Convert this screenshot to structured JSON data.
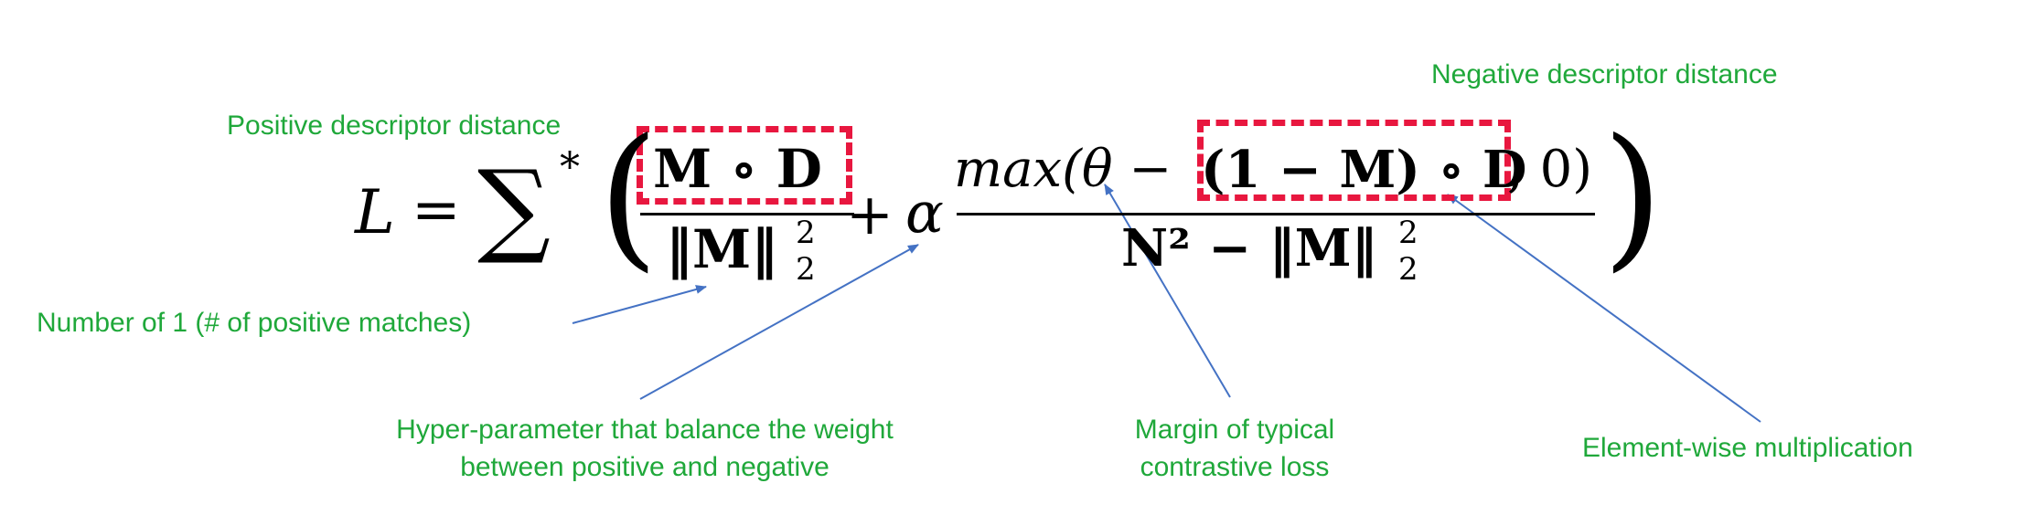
{
  "annotations": {
    "positive_distance": "Positive descriptor distance",
    "negative_distance": "Negative descriptor distance",
    "num_positive": "Number of 1 (# of positive matches)",
    "hyperparam_line1": "Hyper-parameter that balance the weight",
    "hyperparam_line2": "between positive and negative",
    "margin_line1": "Margin of typical",
    "margin_line2": "contrastive loss",
    "elementwise": "Element-wise multiplication"
  },
  "formula": {
    "lhs": "L",
    "equals": "=",
    "sum": "∑",
    "star": "*",
    "open_paren": "(",
    "close_paren": ")",
    "first_numerator": "M ∘ D",
    "first_denominator_norm": "‖M‖",
    "plus": "+",
    "alpha": "α",
    "second_numerator_func": "max(θ −",
    "second_numerator_term": "(1 − M) ∘ D",
    "second_numerator_tail": ", 0)",
    "second_denominator": "N² − ‖M‖",
    "exponent": "2",
    "subscript": "2"
  },
  "colors": {
    "annotation_text": "#1fa83a",
    "highlight_box": "#e8173f",
    "arrow": "#4472c4",
    "formula": "#000000"
  }
}
